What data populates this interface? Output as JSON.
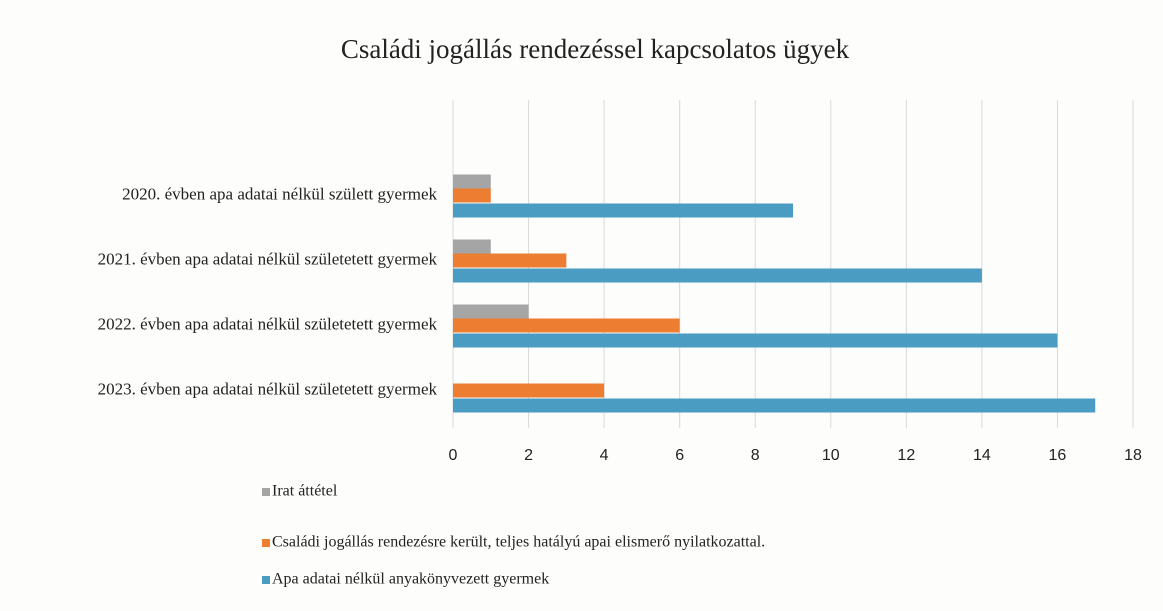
{
  "chart_data": {
    "type": "hbar",
    "title": "Családi jogállás rendezéssel kapcsolatos ügyek",
    "categories": [
      "2020. évben apa adatai nélkül születt gyermek",
      "2021. évben apa adatai nélkül születetett gyermek",
      "2022. évben apa adatai nélkül születetett gyermek",
      "2023. évben apa adatai nélkül születetett gyermek"
    ],
    "series": [
      {
        "name": "Irat áttétel",
        "color": "#a5a5a5",
        "values": [
          1,
          1,
          2,
          0
        ]
      },
      {
        "name": "Családi jogállás rendezésre került, teljes hatályú apai elismerő nyilatkozattal.",
        "color": "#ed7d31",
        "values": [
          1,
          3,
          6,
          4
        ]
      },
      {
        "name": "Apa adatai nélkül anyakönyvezett gyermek",
        "color": "#4b9cc2",
        "values": [
          9,
          14,
          16,
          17
        ]
      }
    ],
    "xlim": [
      0,
      18
    ],
    "xticks": [
      0,
      2,
      4,
      6,
      8,
      10,
      12,
      14,
      16,
      18
    ],
    "grid": true,
    "legend": "bottom"
  }
}
